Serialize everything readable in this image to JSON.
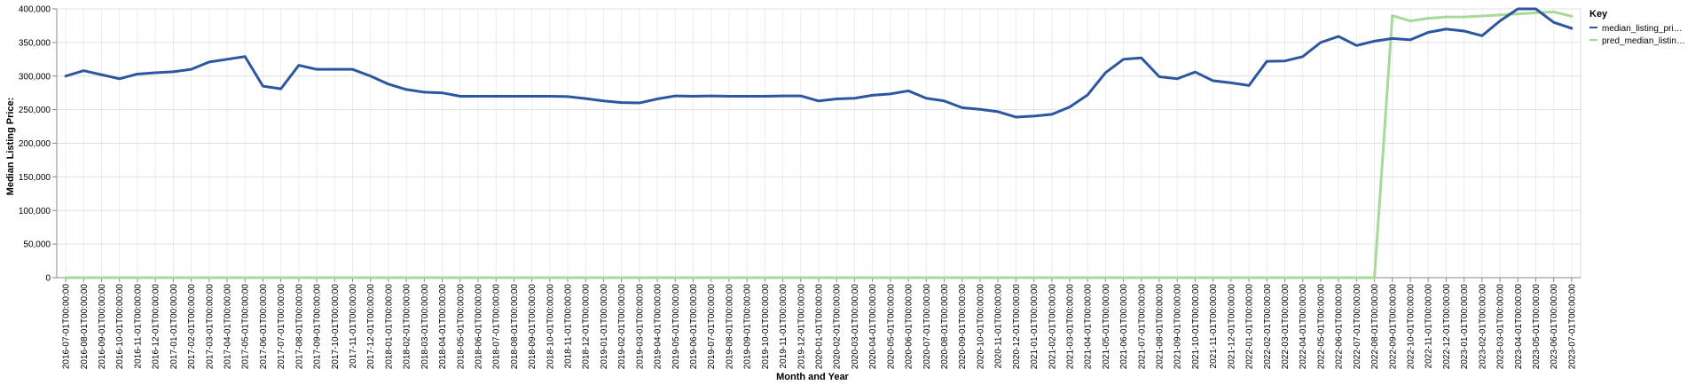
{
  "chart_data": {
    "type": "line",
    "xlabel": "Month and Year",
    "ylabel": "Median Listing Price:",
    "ylim": [
      0,
      400000
    ],
    "yticks": [
      "0",
      "50,000",
      "100,000",
      "150,000",
      "200,000",
      "250,000",
      "300,000",
      "350,000",
      "400,000"
    ],
    "grid": true,
    "legend": {
      "title": "Key",
      "placement": "right",
      "entries": [
        "median_listing_pri…",
        "pred_median_listin…"
      ]
    },
    "x": [
      "2016-07-01T00:00:00",
      "2016-08-01T00:00:00",
      "2016-09-01T00:00:00",
      "2016-10-01T00:00:00",
      "2016-11-01T00:00:00",
      "2016-12-01T00:00:00",
      "2017-01-01T00:00:00",
      "2017-02-01T00:00:00",
      "2017-03-01T00:00:00",
      "2017-04-01T00:00:00",
      "2017-05-01T00:00:00",
      "2017-06-01T00:00:00",
      "2017-07-01T00:00:00",
      "2017-08-01T00:00:00",
      "2017-09-01T00:00:00",
      "2017-10-01T00:00:00",
      "2017-11-01T00:00:00",
      "2017-12-01T00:00:00",
      "2018-01-01T00:00:00",
      "2018-02-01T00:00:00",
      "2018-03-01T00:00:00",
      "2018-04-01T00:00:00",
      "2018-05-01T00:00:00",
      "2018-06-01T00:00:00",
      "2018-07-01T00:00:00",
      "2018-08-01T00:00:00",
      "2018-09-01T00:00:00",
      "2018-10-01T00:00:00",
      "2018-11-01T00:00:00",
      "2018-12-01T00:00:00",
      "2019-01-01T00:00:00",
      "2019-02-01T00:00:00",
      "2019-03-01T00:00:00",
      "2019-04-01T00:00:00",
      "2019-05-01T00:00:00",
      "2019-06-01T00:00:00",
      "2019-07-01T00:00:00",
      "2019-08-01T00:00:00",
      "2019-09-01T00:00:00",
      "2019-10-01T00:00:00",
      "2019-11-01T00:00:00",
      "2019-12-01T00:00:00",
      "2020-01-01T00:00:00",
      "2020-02-01T00:00:00",
      "2020-03-01T00:00:00",
      "2020-04-01T00:00:00",
      "2020-05-01T00:00:00",
      "2020-06-01T00:00:00",
      "2020-07-01T00:00:00",
      "2020-08-01T00:00:00",
      "2020-09-01T00:00:00",
      "2020-10-01T00:00:00",
      "2020-11-01T00:00:00",
      "2020-12-01T00:00:00",
      "2021-01-01T00:00:00",
      "2021-02-01T00:00:00",
      "2021-03-01T00:00:00",
      "2021-04-01T00:00:00",
      "2021-05-01T00:00:00",
      "2021-06-01T00:00:00",
      "2021-07-01T00:00:00",
      "2021-08-01T00:00:00",
      "2021-09-01T00:00:00",
      "2021-10-01T00:00:00",
      "2021-11-01T00:00:00",
      "2021-12-01T00:00:00",
      "2022-01-01T00:00:00",
      "2022-02-01T00:00:00",
      "2022-03-01T00:00:00",
      "2022-04-01T00:00:00",
      "2022-05-01T00:00:00",
      "2022-06-01T00:00:00",
      "2022-07-01T00:00:00",
      "2022-08-01T00:00:00",
      "2022-09-01T00:00:00",
      "2022-10-01T00:00:00",
      "2022-11-01T00:00:00",
      "2022-12-01T00:00:00",
      "2023-01-01T00:00:00",
      "2023-02-01T00:00:00",
      "2023-03-01T00:00:00",
      "2023-04-01T00:00:00",
      "2023-05-01T00:00:00",
      "2023-06-01T00:00:00",
      "2023-07-01T00:00:00"
    ],
    "series": [
      {
        "name": "median_listing_pri…",
        "color": "#2c57a0",
        "values": [
          300000,
          308000,
          302000,
          296000,
          303000,
          305000,
          306500,
          310000,
          321000,
          325000,
          329000,
          285000,
          281000,
          316000,
          310000,
          310000,
          310000,
          300000,
          288000,
          280000,
          276000,
          275000,
          270000,
          270000,
          270000,
          270000,
          270000,
          270000,
          269500,
          266500,
          263000,
          260500,
          260000,
          266000,
          270500,
          270000,
          270500,
          270000,
          270000,
          270000,
          270500,
          270500,
          263000,
          266000,
          267000,
          271500,
          273500,
          278000,
          267000,
          263000,
          253000,
          250500,
          247000,
          239000,
          240500,
          243000,
          254000,
          272000,
          305000,
          325000,
          327000,
          299000,
          296000,
          306000,
          293000,
          290000,
          286000,
          322000,
          322500,
          329000,
          350000,
          359000,
          345500,
          352000,
          356000,
          354000,
          365000,
          370000,
          367000,
          360000,
          382000,
          400000,
          400000,
          380000,
          371000
        ]
      },
      {
        "name": "pred_median_listin…",
        "color": "#a6d99a",
        "values": [
          0,
          0,
          0,
          0,
          0,
          0,
          0,
          0,
          0,
          0,
          0,
          0,
          0,
          0,
          0,
          0,
          0,
          0,
          0,
          0,
          0,
          0,
          0,
          0,
          0,
          0,
          0,
          0,
          0,
          0,
          0,
          0,
          0,
          0,
          0,
          0,
          0,
          0,
          0,
          0,
          0,
          0,
          0,
          0,
          0,
          0,
          0,
          0,
          0,
          0,
          0,
          0,
          0,
          0,
          0,
          0,
          0,
          0,
          0,
          0,
          0,
          0,
          0,
          0,
          0,
          0,
          0,
          0,
          0,
          0,
          0,
          0,
          0,
          0,
          390000,
          382000,
          386000,
          388000,
          388000,
          389500,
          391000,
          392500,
          394000,
          395500,
          389000
        ]
      }
    ]
  }
}
